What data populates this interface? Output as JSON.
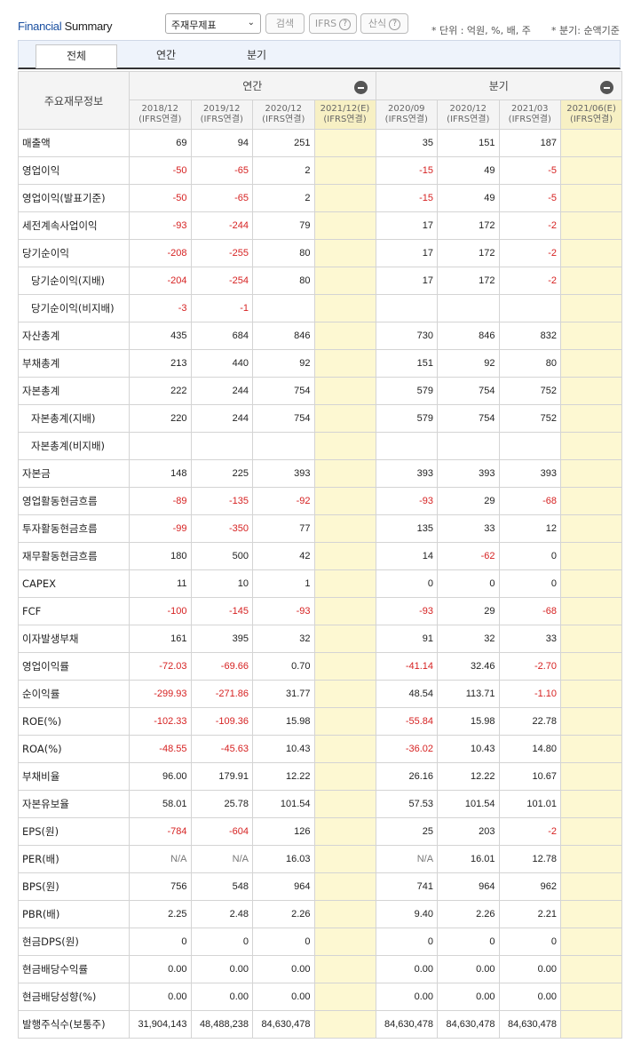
{
  "header": {
    "title_financial": "Financial",
    "title_summary": "Summary",
    "select_value": "주재무제표",
    "search_label": "검색",
    "ifrs_label": "IFRS",
    "calc_label": "산식",
    "help_glyph": "?",
    "unit_note": "* 단위 : 억원, %, 배, 주",
    "quarter_note": "* 분기: 순액기준"
  },
  "tabs": [
    {
      "label": "전체",
      "active": true
    },
    {
      "label": "연간",
      "active": false
    },
    {
      "label": "분기",
      "active": false
    }
  ],
  "table": {
    "corner_label": "주요재무정보",
    "annual_label": "연간",
    "quarter_label": "분기",
    "periods": [
      {
        "date": "2018/12",
        "basis": "(IFRS연결)"
      },
      {
        "date": "2019/12",
        "basis": "(IFRS연결)"
      },
      {
        "date": "2020/12",
        "basis": "(IFRS연결)"
      },
      {
        "date": "2021/12(E)",
        "basis": "(IFRS연결)"
      },
      {
        "date": "2020/09",
        "basis": "(IFRS연결)"
      },
      {
        "date": "2020/12",
        "basis": "(IFRS연결)"
      },
      {
        "date": "2021/03",
        "basis": "(IFRS연결)"
      },
      {
        "date": "2021/06(E)",
        "basis": "(IFRS연결)"
      }
    ],
    "rows": [
      {
        "label": "매출액",
        "values": [
          "69",
          "94",
          "251",
          "",
          "35",
          "151",
          "187",
          ""
        ]
      },
      {
        "label": "영업이익",
        "values": [
          "-50",
          "-65",
          "2",
          "",
          "-15",
          "49",
          "-5",
          ""
        ]
      },
      {
        "label": "영업이익(발표기준)",
        "values": [
          "-50",
          "-65",
          "2",
          "",
          "-15",
          "49",
          "-5",
          ""
        ]
      },
      {
        "label": "세전계속사업이익",
        "values": [
          "-93",
          "-244",
          "79",
          "",
          "17",
          "172",
          "-2",
          ""
        ]
      },
      {
        "label": "당기순이익",
        "values": [
          "-208",
          "-255",
          "80",
          "",
          "17",
          "172",
          "-2",
          ""
        ]
      },
      {
        "label": "당기순이익(지배)",
        "sub": true,
        "values": [
          "-204",
          "-254",
          "80",
          "",
          "17",
          "172",
          "-2",
          ""
        ]
      },
      {
        "label": "당기순이익(비지배)",
        "sub": true,
        "values": [
          "-3",
          "-1",
          "",
          "",
          "",
          "",
          "",
          ""
        ]
      },
      {
        "label": "자산총계",
        "values": [
          "435",
          "684",
          "846",
          "",
          "730",
          "846",
          "832",
          ""
        ]
      },
      {
        "label": "부채총계",
        "values": [
          "213",
          "440",
          "92",
          "",
          "151",
          "92",
          "80",
          ""
        ]
      },
      {
        "label": "자본총계",
        "values": [
          "222",
          "244",
          "754",
          "",
          "579",
          "754",
          "752",
          ""
        ]
      },
      {
        "label": "자본총계(지배)",
        "sub": true,
        "values": [
          "220",
          "244",
          "754",
          "",
          "579",
          "754",
          "752",
          ""
        ]
      },
      {
        "label": "자본총계(비지배)",
        "sub": true,
        "values": [
          "",
          "",
          "",
          "",
          "",
          "",
          "",
          ""
        ]
      },
      {
        "label": "자본금",
        "values": [
          "148",
          "225",
          "393",
          "",
          "393",
          "393",
          "393",
          ""
        ]
      },
      {
        "label": "영업활동현금흐름",
        "values": [
          "-89",
          "-135",
          "-92",
          "",
          "-93",
          "29",
          "-68",
          ""
        ]
      },
      {
        "label": "투자활동현금흐름",
        "values": [
          "-99",
          "-350",
          "77",
          "",
          "135",
          "33",
          "12",
          ""
        ]
      },
      {
        "label": "재무활동현금흐름",
        "values": [
          "180",
          "500",
          "42",
          "",
          "14",
          "-62",
          "0",
          ""
        ]
      },
      {
        "label": "CAPEX",
        "values": [
          "11",
          "10",
          "1",
          "",
          "0",
          "0",
          "0",
          ""
        ]
      },
      {
        "label": "FCF",
        "values": [
          "-100",
          "-145",
          "-93",
          "",
          "-93",
          "29",
          "-68",
          ""
        ]
      },
      {
        "label": "이자발생부채",
        "values": [
          "161",
          "395",
          "32",
          "",
          "91",
          "32",
          "33",
          ""
        ]
      },
      {
        "label": "영업이익률",
        "values": [
          "-72.03",
          "-69.66",
          "0.70",
          "",
          "-41.14",
          "32.46",
          "-2.70",
          ""
        ]
      },
      {
        "label": "순이익률",
        "values": [
          "-299.93",
          "-271.86",
          "31.77",
          "",
          "48.54",
          "113.71",
          "-1.10",
          ""
        ]
      },
      {
        "label": "ROE(%)",
        "values": [
          "-102.33",
          "-109.36",
          "15.98",
          "",
          "-55.84",
          "15.98",
          "22.78",
          ""
        ]
      },
      {
        "label": "ROA(%)",
        "values": [
          "-48.55",
          "-45.63",
          "10.43",
          "",
          "-36.02",
          "10.43",
          "14.80",
          ""
        ]
      },
      {
        "label": "부채비율",
        "values": [
          "96.00",
          "179.91",
          "12.22",
          "",
          "26.16",
          "12.22",
          "10.67",
          ""
        ]
      },
      {
        "label": "자본유보율",
        "values": [
          "58.01",
          "25.78",
          "101.54",
          "",
          "57.53",
          "101.54",
          "101.01",
          ""
        ]
      },
      {
        "label": "EPS(원)",
        "values": [
          "-784",
          "-604",
          "126",
          "",
          "25",
          "203",
          "-2",
          ""
        ]
      },
      {
        "label": "PER(배)",
        "values": [
          "N/A",
          "N/A",
          "16.03",
          "",
          "N/A",
          "16.01",
          "12.78",
          ""
        ]
      },
      {
        "label": "BPS(원)",
        "values": [
          "756",
          "548",
          "964",
          "",
          "741",
          "964",
          "962",
          ""
        ]
      },
      {
        "label": "PBR(배)",
        "values": [
          "2.25",
          "2.48",
          "2.26",
          "",
          "9.40",
          "2.26",
          "2.21",
          ""
        ]
      },
      {
        "label": "현금DPS(원)",
        "values": [
          "0",
          "0",
          "0",
          "",
          "0",
          "0",
          "0",
          ""
        ]
      },
      {
        "label": "현금배당수익률",
        "values": [
          "0.00",
          "0.00",
          "0.00",
          "",
          "0.00",
          "0.00",
          "0.00",
          ""
        ]
      },
      {
        "label": "현금배당성향(%)",
        "values": [
          "0.00",
          "0.00",
          "0.00",
          "",
          "0.00",
          "0.00",
          "0.00",
          ""
        ]
      },
      {
        "label": "발행주식수(보통주)",
        "values": [
          "31,904,143",
          "48,488,238",
          "84,630,478",
          "",
          "84,630,478",
          "84,630,478",
          "84,630,478",
          ""
        ]
      }
    ]
  }
}
